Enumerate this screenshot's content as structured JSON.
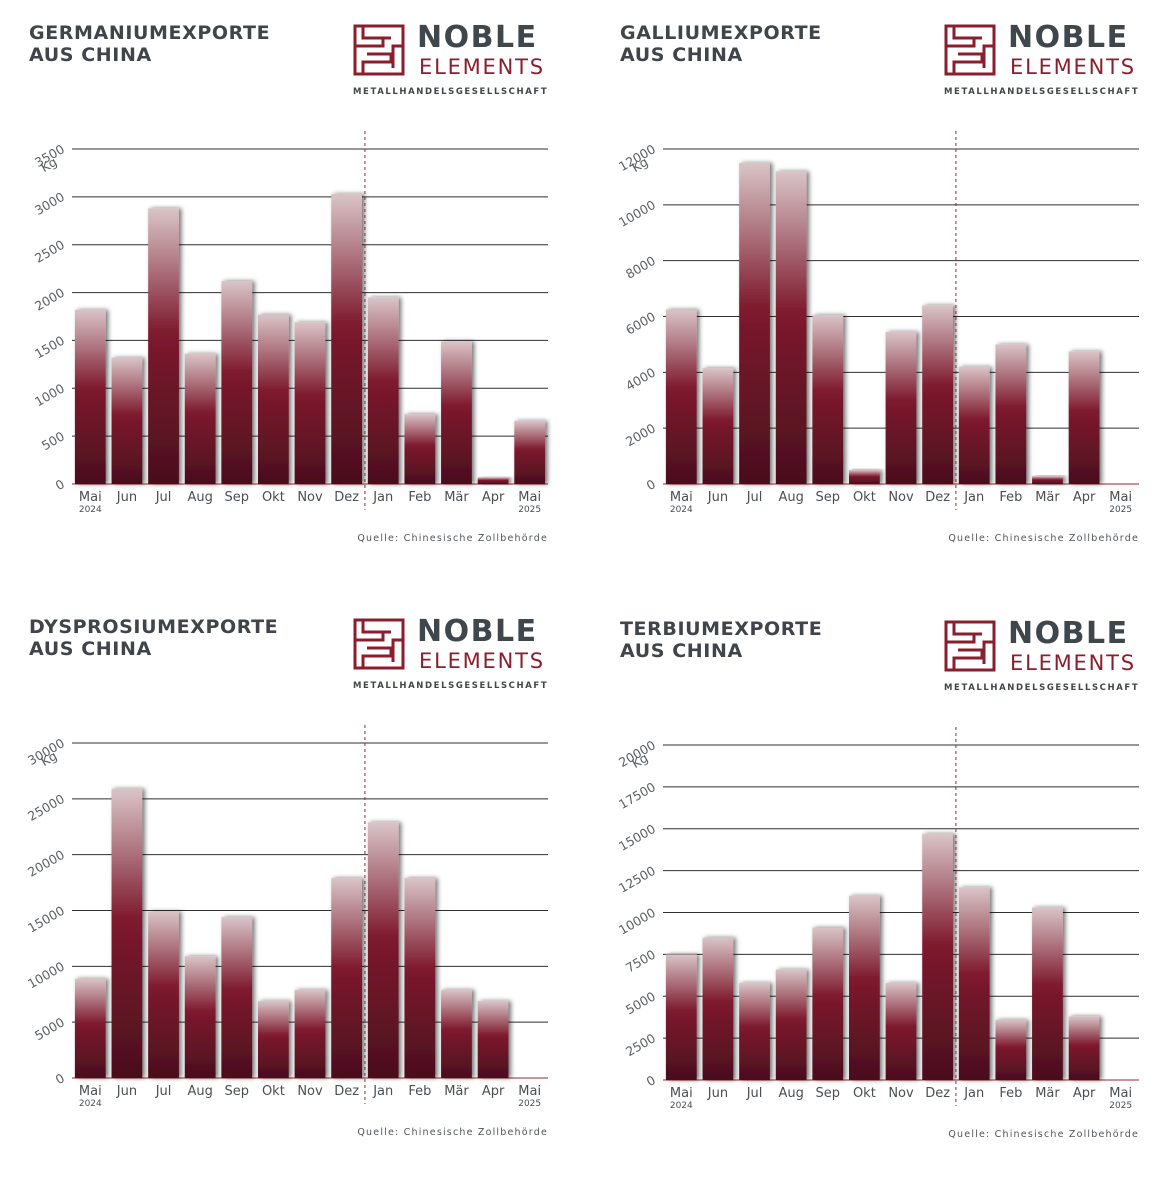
{
  "brand": {
    "name_line1": "NOBLE",
    "name_line2": "ELEMENTS",
    "tagline": "METALLHANDELSGESELLSCHAFT",
    "source": "Quelle: Chinesische Zollbehörde"
  },
  "colors": {
    "bar_top": "#d9c4c7",
    "bar_mid": "#7e1a2e",
    "bar_bottom": "#4a0f1e",
    "grid": "#2f2f2f",
    "divider": "#9b2335",
    "brand_red": "#8b1e2c",
    "brand_gray": "#40474c"
  },
  "chart_data": [
    {
      "type": "bar",
      "title": "GERMANIUMEXPORTE\nAUS CHINA",
      "unit": "Kg",
      "categories": [
        "Mai",
        "Jun",
        "Jul",
        "Aug",
        "Sep",
        "Okt",
        "Nov",
        "Dez",
        "Jan",
        "Feb",
        "Mär",
        "Apr",
        "Mai"
      ],
      "year_labels": {
        "0": "2024",
        "12": "2025"
      },
      "values": [
        1820,
        1320,
        2880,
        1360,
        2120,
        1770,
        1690,
        3030,
        1950,
        730,
        1490,
        70,
        660
      ],
      "ylim": [
        0,
        3500
      ],
      "yticks": [
        0,
        500,
        1000,
        1500,
        2000,
        2500,
        3000,
        3500
      ],
      "year_divider_after": "Dez"
    },
    {
      "type": "bar",
      "title": "GALLIUMEXPORTE\nAUS CHINA",
      "unit": "Kg",
      "categories": [
        "Mai",
        "Jun",
        "Jul",
        "Aug",
        "Sep",
        "Okt",
        "Nov",
        "Dez",
        "Jan",
        "Feb",
        "Mär",
        "Apr",
        "Mai"
      ],
      "year_labels": {
        "0": "2024",
        "12": "2025"
      },
      "values": [
        6250,
        4150,
        11500,
        11200,
        6050,
        500,
        5450,
        6400,
        4200,
        5000,
        280,
        4750,
        0
      ],
      "ylim": [
        0,
        12000
      ],
      "yticks": [
        0,
        2000,
        4000,
        6000,
        8000,
        10000,
        12000
      ],
      "year_divider_after": "Dez"
    },
    {
      "type": "bar",
      "title": "DYSPROSIUMEXPORTE\nAUS CHINA",
      "unit": "Kg",
      "categories": [
        "Mai",
        "Jun",
        "Jul",
        "Aug",
        "Sep",
        "Okt",
        "Nov",
        "Dez",
        "Jan",
        "Feb",
        "Mär",
        "Apr",
        "Mai"
      ],
      "year_labels": {
        "0": "2024",
        "12": "2025"
      },
      "values": [
        8900,
        25900,
        14900,
        10900,
        14400,
        6900,
        7900,
        17900,
        22900,
        17900,
        7900,
        6900,
        0
      ],
      "ylim": [
        0,
        30000
      ],
      "yticks": [
        0,
        5000,
        10000,
        15000,
        20000,
        25000,
        30000
      ],
      "year_divider_after": "Dez"
    },
    {
      "type": "bar",
      "title": "TERBIUMEXPORTE\nAUS CHINA",
      "unit": "Kg",
      "categories": [
        "Mai",
        "Jun",
        "Jul",
        "Aug",
        "Sep",
        "Okt",
        "Nov",
        "Dez",
        "Jan",
        "Feb",
        "Mär",
        "Apr",
        "Mai"
      ],
      "year_labels": {
        "0": "2024",
        "12": "2025"
      },
      "values": [
        7500,
        8500,
        5800,
        6600,
        9100,
        11000,
        5800,
        14700,
        11500,
        3600,
        10300,
        3800,
        0
      ],
      "ylim": [
        0,
        20000
      ],
      "yticks": [
        0,
        2500,
        5000,
        7500,
        10000,
        12500,
        15000,
        17500,
        20000
      ],
      "year_divider_after": "Dez"
    }
  ]
}
